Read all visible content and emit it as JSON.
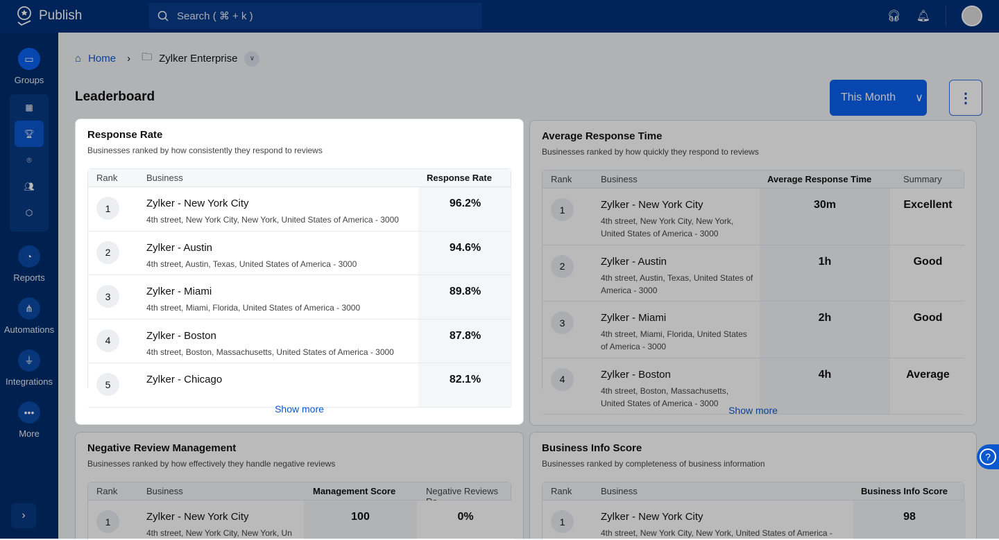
{
  "app": {
    "name": "Publish",
    "search_placeholder": "Search ( ⌘ + k )"
  },
  "sidebar": {
    "items": [
      {
        "label": "Groups",
        "icon": "folder-pin-icon"
      },
      {
        "label": "Reports",
        "icon": "pie-chart-icon"
      },
      {
        "label": "Automations",
        "icon": "flow-icon"
      },
      {
        "label": "Integrations",
        "icon": "plug-icon"
      },
      {
        "label": "More",
        "icon": "more-icon"
      }
    ],
    "subnav": [
      "dashboard-icon",
      "trophy-icon",
      "location-icon",
      "users-icon",
      "shield-icon"
    ]
  },
  "breadcrumb": {
    "home": "Home",
    "current": "Zylker Enterprise"
  },
  "page": {
    "title": "Leaderboard",
    "period": "This Month"
  },
  "cards": {
    "response": {
      "title": "Response Rate",
      "subtitle": "Businesses ranked by how consistently they respond to reviews",
      "cols": [
        "Rank",
        "Business",
        "Response Rate"
      ],
      "show_more": "Show more",
      "rows": [
        {
          "rank": "1",
          "name": "Zylker - New York City",
          "addr": "4th street, New York City, New York, United States of America - 3000",
          "value": "96.2%"
        },
        {
          "rank": "2",
          "name": "Zylker - Austin",
          "addr": "4th street, Austin, Texas, United States of America - 3000",
          "value": "94.6%"
        },
        {
          "rank": "3",
          "name": "Zylker - Miami",
          "addr": "4th street, Miami, Florida, United States of America - 3000",
          "value": "89.8%"
        },
        {
          "rank": "4",
          "name": "Zylker - Boston",
          "addr": "4th street, Boston, Massachusetts, United States of America - 3000",
          "value": "87.8%"
        },
        {
          "rank": "5",
          "name": "Zylker - Chicago",
          "addr": "",
          "value": "82.1%"
        }
      ]
    },
    "avg": {
      "title": "Average Response Time",
      "subtitle": "Businesses ranked by how quickly they respond to reviews",
      "cols": [
        "Rank",
        "Business",
        "Average Response Time",
        "Summary"
      ],
      "show_more": "Show more",
      "rows": [
        {
          "rank": "1",
          "name": "Zylker - New York City",
          "addr": "4th street, New York City, New York, United States of America - 3000",
          "value": "30m",
          "summary": "Excellent"
        },
        {
          "rank": "2",
          "name": "Zylker - Austin",
          "addr": "4th street, Austin, Texas, United States of America - 3000",
          "value": "1h",
          "summary": "Good"
        },
        {
          "rank": "3",
          "name": "Zylker - Miami",
          "addr": "4th street, Miami, Florida, United States of America - 3000",
          "value": "2h",
          "summary": "Good"
        },
        {
          "rank": "4",
          "name": "Zylker - Boston",
          "addr": "4th street, Boston, Massachusetts, United States of America - 3000",
          "value": "4h",
          "summary": "Average"
        }
      ]
    },
    "negative": {
      "title": "Negative Review Management",
      "subtitle": "Businesses ranked by how effectively they handle negative reviews",
      "cols": [
        "Rank",
        "Business",
        "Management Score",
        "Negative Reviews Ra"
      ],
      "rows": [
        {
          "rank": "1",
          "name": "Zylker - New York City",
          "addr": "4th street, New York City, New York, Un",
          "value": "100",
          "summary": "0%"
        }
      ]
    },
    "info": {
      "title": "Business Info Score",
      "subtitle": "Businesses ranked by completeness of business information",
      "cols": [
        "Rank",
        "Business",
        "Business Info Score"
      ],
      "rows": [
        {
          "rank": "1",
          "name": "Zylker - New York City",
          "addr": "4th street, New York City, New York, United States of America -",
          "value": "98"
        }
      ]
    }
  },
  "colors": {
    "header": "#00307a",
    "accent": "#0b57d0"
  }
}
